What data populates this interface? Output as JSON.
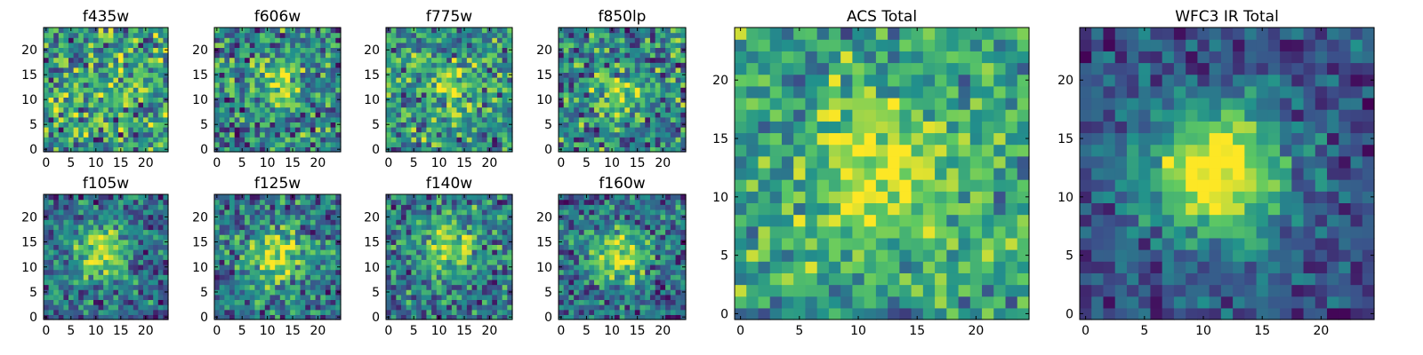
{
  "figure": {
    "colormap": [
      "#440154",
      "#3b528b",
      "#21918c",
      "#5ec962",
      "#fde725"
    ]
  },
  "chart_data": [
    {
      "type": "heatmap",
      "title": "f435w",
      "size": 25,
      "seed": 11,
      "noise": 1.0,
      "blob": 0.05,
      "blob_center": [
        12,
        12
      ],
      "blob_sigma": 4,
      "bias": 0.55,
      "xlim": [
        0,
        25
      ],
      "ylim": [
        0,
        25
      ],
      "xticks": [
        0,
        5,
        10,
        15,
        20
      ],
      "yticks": [
        0,
        5,
        10,
        15,
        20
      ]
    },
    {
      "type": "heatmap",
      "title": "f606w",
      "size": 25,
      "seed": 23,
      "noise": 0.9,
      "blob": 0.35,
      "blob_center": [
        12,
        13
      ],
      "blob_sigma": 3.5,
      "bias": 0.45,
      "xlim": [
        0,
        25
      ],
      "ylim": [
        0,
        25
      ],
      "xticks": [
        0,
        5,
        10,
        15,
        20
      ],
      "yticks": [
        0,
        5,
        10,
        15,
        20
      ]
    },
    {
      "type": "heatmap",
      "title": "f775w",
      "size": 25,
      "seed": 37,
      "noise": 0.9,
      "blob": 0.35,
      "blob_center": [
        12,
        13
      ],
      "blob_sigma": 3.5,
      "bias": 0.5,
      "xlim": [
        0,
        25
      ],
      "ylim": [
        0,
        25
      ],
      "xticks": [
        0,
        5,
        10,
        15,
        20
      ],
      "yticks": [
        0,
        5,
        10,
        15,
        20
      ]
    },
    {
      "type": "heatmap",
      "title": "f850lp",
      "size": 25,
      "seed": 41,
      "noise": 0.9,
      "blob": 0.3,
      "blob_center": [
        11,
        11
      ],
      "blob_sigma": 3.5,
      "bias": 0.45,
      "xlim": [
        0,
        25
      ],
      "ylim": [
        0,
        25
      ],
      "xticks": [
        0,
        5,
        10,
        15,
        20
      ],
      "yticks": [
        0,
        5,
        10,
        15,
        20
      ]
    },
    {
      "type": "heatmap",
      "title": "f105w",
      "size": 25,
      "seed": 53,
      "noise": 0.75,
      "blob": 0.55,
      "blob_center": [
        11,
        13
      ],
      "blob_sigma": 4,
      "bias": 0.35,
      "xlim": [
        0,
        25
      ],
      "ylim": [
        0,
        25
      ],
      "xticks": [
        0,
        5,
        10,
        15,
        20
      ],
      "yticks": [
        0,
        5,
        10,
        15,
        20
      ]
    },
    {
      "type": "heatmap",
      "title": "f125w",
      "size": 25,
      "seed": 67,
      "noise": 0.75,
      "blob": 0.5,
      "blob_center": [
        12,
        12
      ],
      "blob_sigma": 4,
      "bias": 0.4,
      "xlim": [
        0,
        25
      ],
      "ylim": [
        0,
        25
      ],
      "xticks": [
        0,
        5,
        10,
        15,
        20
      ],
      "yticks": [
        0,
        5,
        10,
        15,
        20
      ]
    },
    {
      "type": "heatmap",
      "title": "f140w",
      "size": 25,
      "seed": 79,
      "noise": 0.8,
      "blob": 0.45,
      "blob_center": [
        12,
        14
      ],
      "blob_sigma": 4,
      "bias": 0.4,
      "xlim": [
        0,
        25
      ],
      "ylim": [
        0,
        25
      ],
      "xticks": [
        0,
        5,
        10,
        15,
        20
      ],
      "yticks": [
        0,
        5,
        10,
        15,
        20
      ]
    },
    {
      "type": "heatmap",
      "title": "f160w",
      "size": 25,
      "seed": 83,
      "noise": 0.75,
      "blob": 0.55,
      "blob_center": [
        11,
        12
      ],
      "blob_sigma": 4,
      "bias": 0.35,
      "xlim": [
        0,
        25
      ],
      "ylim": [
        0,
        25
      ],
      "xticks": [
        0,
        5,
        10,
        15,
        20
      ],
      "yticks": [
        0,
        5,
        10,
        15,
        20
      ]
    },
    {
      "type": "heatmap",
      "title": "ACS Total",
      "size": 25,
      "seed": 97,
      "noise": 0.7,
      "blob": 0.4,
      "blob_center": [
        12,
        12
      ],
      "blob_sigma": 4.5,
      "bias": 0.55,
      "xlim": [
        0,
        25
      ],
      "ylim": [
        0,
        25
      ],
      "xticks": [
        0,
        5,
        10,
        15,
        20
      ],
      "yticks": [
        0,
        5,
        10,
        15,
        20
      ]
    },
    {
      "type": "heatmap",
      "title": "WFC3 IR Total",
      "size": 25,
      "seed": 101,
      "noise": 0.5,
      "blob": 0.85,
      "blob_center": [
        11,
        12
      ],
      "blob_sigma": 4,
      "bias": 0.25,
      "xlim": [
        0,
        25
      ],
      "ylim": [
        0,
        25
      ],
      "xticks": [
        0,
        5,
        10,
        15,
        20
      ],
      "yticks": [
        0,
        5,
        10,
        15,
        20
      ]
    }
  ]
}
